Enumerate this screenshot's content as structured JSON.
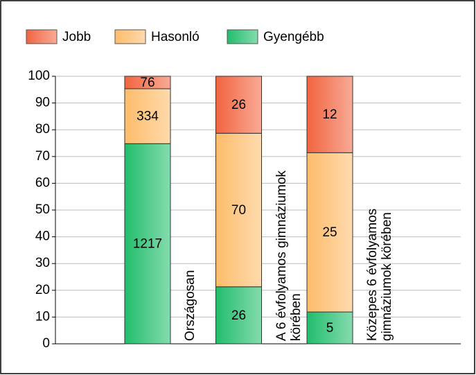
{
  "chart_data": {
    "type": "bar",
    "stack": "percent",
    "categories": [
      "Országosan",
      "A 6 évfolyamos gimnáziumok körében",
      "Közepes 6 évfolyamos gimnáziumok körében"
    ],
    "series": [
      {
        "name": "Jobb",
        "color": "#f26440",
        "values": [
          76,
          26,
          12
        ]
      },
      {
        "name": "Hasonló",
        "color": "#fdbc6a",
        "values": [
          334,
          70,
          25
        ]
      },
      {
        "name": "Gyengébb",
        "color": "#22bd6c",
        "values": [
          1217,
          26,
          5
        ]
      }
    ],
    "ylim": [
      0,
      100
    ],
    "yticks": [
      0,
      10,
      20,
      30,
      40,
      50,
      60,
      70,
      80,
      90,
      100
    ],
    "grid": true,
    "legend": "top"
  }
}
